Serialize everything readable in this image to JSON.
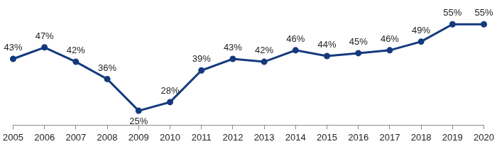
{
  "chart_data": {
    "type": "line",
    "categories": [
      "2005",
      "2006",
      "2007",
      "2008",
      "2009",
      "2010",
      "2011",
      "2012",
      "2013",
      "2014",
      "2015",
      "2016",
      "2017",
      "2018",
      "2019",
      "2020"
    ],
    "values": [
      43,
      47,
      42,
      36,
      25,
      28,
      39,
      43,
      42,
      46,
      44,
      45,
      46,
      49,
      55,
      55
    ],
    "value_labels": [
      "43%",
      "47%",
      "42%",
      "36%",
      "25%",
      "28%",
      "39%",
      "43%",
      "42%",
      "46%",
      "44%",
      "45%",
      "46%",
      "49%",
      "55%",
      "55%"
    ],
    "color": "#143a7d",
    "marker": "circle",
    "line_style": "solid",
    "data_labels": true,
    "grid": false,
    "tick_labels": "x"
  }
}
